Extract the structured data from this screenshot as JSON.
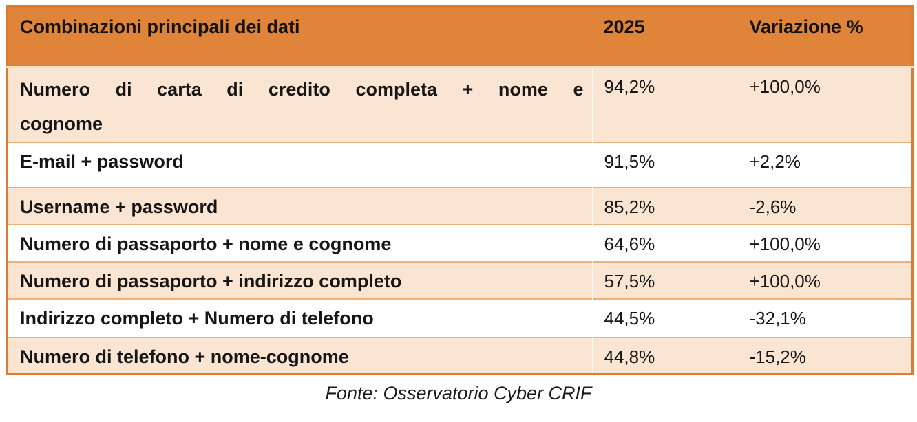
{
  "table": {
    "columns": {
      "main": "Combinazioni principali dei dati",
      "year": "2025",
      "variation": "Variazione %"
    },
    "rows": [
      {
        "label": "Numero di carta di credito completa + nome e cognome",
        "value_2025": "94,2%",
        "variation": "+100,0%"
      },
      {
        "label": "E-mail + password",
        "value_2025": "91,5%",
        "variation": "+2,2%"
      },
      {
        "label": "Username + password",
        "value_2025": "85,2%",
        "variation": "-2,6%"
      },
      {
        "label": "Numero di passaporto + nome e cognome",
        "value_2025": "64,6%",
        "variation": "+100,0%"
      },
      {
        "label": "Numero di passaporto + indirizzo completo",
        "value_2025": "57,5%",
        "variation": "+100,0%"
      },
      {
        "label": "Indirizzo completo + Numero di telefono",
        "value_2025": "44,5%",
        "variation": "-32,1%"
      },
      {
        "label": "Numero di telefono + nome-cognome",
        "value_2025": "44,8%",
        "variation": "-15,2%"
      }
    ]
  },
  "footer": {
    "source": "Fonte: Osservatorio Cyber CRIF"
  },
  "colors": {
    "header_bg": "#DF8438",
    "row_alt_bg": "#FAE5D2",
    "row_bg": "#FFFFFF",
    "outer_border": "#DB7E35",
    "row_separator": "#EDB07A",
    "text": "#111111"
  },
  "chart_data": {
    "type": "table",
    "title": "Combinazioni principali dei dati",
    "columns": [
      "Combinazioni principali dei dati",
      "2025",
      "Variazione %"
    ],
    "rows": [
      [
        "Numero di carta di credito completa + nome e cognome",
        "94,2%",
        "+100,0%"
      ],
      [
        "E-mail + password",
        "91,5%",
        "+2,2%"
      ],
      [
        "Username + password",
        "85,2%",
        "-2,6%"
      ],
      [
        "Numero di passaporto + nome e cognome",
        "64,6%",
        "+100,0%"
      ],
      [
        "Numero di passaporto + indirizzo completo",
        "57,5%",
        "+100,0%"
      ],
      [
        "Indirizzo completo + Numero di telefono",
        "44,5%",
        "-32,1%"
      ],
      [
        "Numero di telefono + nome-cognome",
        "44,8%",
        "-15,2%"
      ]
    ],
    "source": "Fonte: Osservatorio Cyber CRIF"
  }
}
